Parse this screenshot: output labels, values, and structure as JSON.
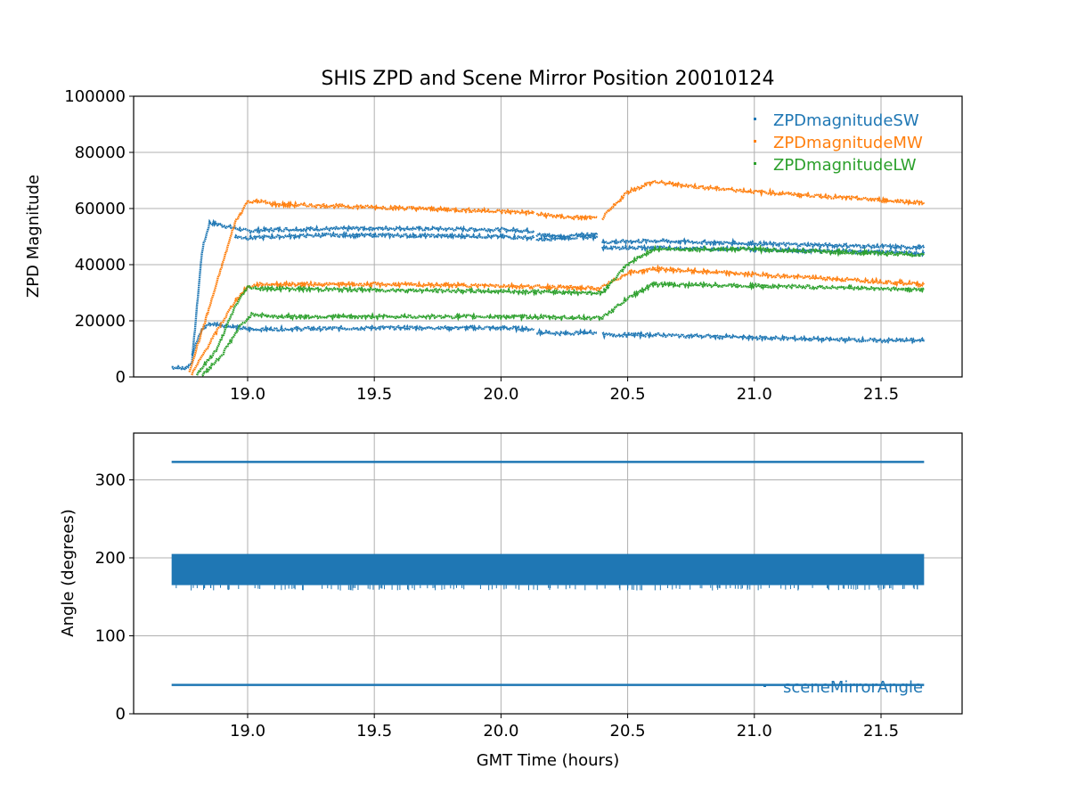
{
  "chart_data": [
    {
      "type": "scatter",
      "title": "SHIS ZPD and Scene Mirror Position 20010124",
      "xlabel": "",
      "ylabel": "ZPD Magnitude",
      "xlim": [
        18.55,
        21.82
      ],
      "ylim": [
        0,
        100000
      ],
      "xticks": [
        19.0,
        19.5,
        20.0,
        20.5,
        21.0,
        21.5
      ],
      "xtick_labels": [
        "19.0",
        "19.5",
        "20.0",
        "20.5",
        "21.0",
        "21.5"
      ],
      "yticks": [
        0,
        20000,
        40000,
        60000,
        80000,
        100000
      ],
      "ytick_labels": [
        "0",
        "20000",
        "40000",
        "60000",
        "80000",
        "100000"
      ],
      "grid": true,
      "legend_position": "top-right",
      "series": [
        {
          "name": "ZPDmagnitudeSW",
          "color": "#1f77b4",
          "tracks": [
            {
              "x": [
                18.7,
                18.75,
                18.78,
                18.8,
                18.82,
                18.85,
                18.9,
                19.0,
                19.1,
                19.5,
                20.0,
                20.13
              ],
              "y": [
                3500,
                3000,
                5000,
                25000,
                45000,
                55000,
                54000,
                52000,
                52500,
                53000,
                52500,
                52000
              ]
            },
            {
              "x": [
                18.78,
                18.82,
                18.85,
                18.9,
                19.0,
                19.1,
                19.5,
                20.0,
                20.13
              ],
              "y": [
                8000,
                17000,
                19000,
                18500,
                17000,
                17000,
                17500,
                17500,
                17000
              ]
            },
            {
              "x": [
                18.95,
                19.0,
                19.1,
                19.3,
                19.5,
                20.0,
                20.13
              ],
              "y": [
                50000,
                49500,
                50000,
                50500,
                50500,
                50000,
                49500
              ]
            },
            {
              "x": [
                20.14,
                20.25,
                20.38
              ],
              "y": [
                50500,
                50000,
                51000
              ]
            },
            {
              "x": [
                20.14,
                20.25,
                20.38
              ],
              "y": [
                49000,
                49500,
                50000
              ]
            },
            {
              "x": [
                20.14,
                20.25,
                20.38
              ],
              "y": [
                16000,
                15500,
                16000
              ]
            },
            {
              "x": [
                20.4,
                20.6,
                21.0,
                21.5,
                21.67
              ],
              "y": [
                48000,
                48500,
                47500,
                46500,
                46000
              ]
            },
            {
              "x": [
                20.4,
                20.6,
                21.0,
                21.5,
                21.67
              ],
              "y": [
                46000,
                46000,
                45500,
                44500,
                44000
              ]
            },
            {
              "x": [
                20.4,
                20.6,
                21.0,
                21.5,
                21.67
              ],
              "y": [
                15000,
                15000,
                14000,
                13000,
                13000
              ]
            }
          ]
        },
        {
          "name": "ZPDmagnitudeMW",
          "color": "#ff7f0e",
          "tracks": [
            {
              "x": [
                18.77,
                18.85,
                18.95,
                19.0,
                19.05,
                19.1,
                19.3,
                19.5,
                20.0,
                20.13
              ],
              "y": [
                2000,
                25000,
                55000,
                62500,
                62500,
                61500,
                61000,
                60500,
                59000,
                58500
              ]
            },
            {
              "x": [
                20.14,
                20.25,
                20.38
              ],
              "y": [
                58000,
                57000,
                56500
              ]
            },
            {
              "x": [
                20.4,
                20.5,
                20.6,
                20.8,
                21.0,
                21.5,
                21.67
              ],
              "y": [
                56500,
                66000,
                69500,
                67500,
                66000,
                63000,
                62000
              ]
            },
            {
              "x": [
                18.78,
                18.85,
                18.95,
                19.0,
                19.05,
                19.5,
                20.0,
                20.4
              ],
              "y": [
                1000,
                12000,
                27000,
                32000,
                33000,
                33000,
                32500,
                31500
              ]
            },
            {
              "x": [
                20.4,
                20.5,
                20.6,
                21.0,
                21.5,
                21.67
              ],
              "y": [
                32000,
                37000,
                38500,
                36500,
                34000,
                33000
              ]
            }
          ]
        },
        {
          "name": "ZPDmagnitudeLW",
          "color": "#2ca02c",
          "tracks": [
            {
              "x": [
                18.8,
                18.88,
                18.95,
                19.0,
                19.05,
                19.5,
                20.0,
                20.4
              ],
              "y": [
                1000,
                10000,
                25000,
                32000,
                31500,
                31000,
                30500,
                30000
              ]
            },
            {
              "x": [
                18.82,
                18.9,
                18.97,
                19.02,
                19.1,
                19.5,
                20.0,
                20.4
              ],
              "y": [
                500,
                8000,
                18000,
                22500,
                21500,
                21500,
                21500,
                21000
              ]
            },
            {
              "x": [
                20.4,
                20.5,
                20.6,
                21.0,
                21.5,
                21.67
              ],
              "y": [
                30000,
                40000,
                45500,
                45500,
                44000,
                43500
              ]
            },
            {
              "x": [
                20.4,
                20.5,
                20.6,
                21.0,
                21.5,
                21.67
              ],
              "y": [
                21000,
                28000,
                33000,
                32500,
                31500,
                31000
              ]
            }
          ]
        }
      ]
    },
    {
      "type": "scatter",
      "title": "",
      "xlabel": "GMT Time (hours)",
      "ylabel": "Angle (degrees)",
      "xlim": [
        18.55,
        21.82
      ],
      "ylim": [
        0,
        360
      ],
      "xticks": [
        19.0,
        19.5,
        20.0,
        20.5,
        21.0,
        21.5
      ],
      "xtick_labels": [
        "19.0",
        "19.5",
        "20.0",
        "20.5",
        "21.0",
        "21.5"
      ],
      "yticks": [
        0,
        100,
        200,
        300
      ],
      "ytick_labels": [
        "0",
        "100",
        "200",
        "300"
      ],
      "grid": true,
      "legend_position": "bottom-right",
      "series": [
        {
          "name": "sceneMirrorAngle",
          "color": "#1f77b4",
          "lines": [
            {
              "x": [
                18.7,
                21.67
              ],
              "y": [
                323,
                323
              ]
            },
            {
              "x": [
                18.7,
                21.67
              ],
              "y": [
                37,
                37
              ]
            }
          ],
          "bands": [
            {
              "x": [
                18.7,
                21.67
              ],
              "y": [
                165,
                205
              ]
            }
          ]
        }
      ]
    }
  ]
}
